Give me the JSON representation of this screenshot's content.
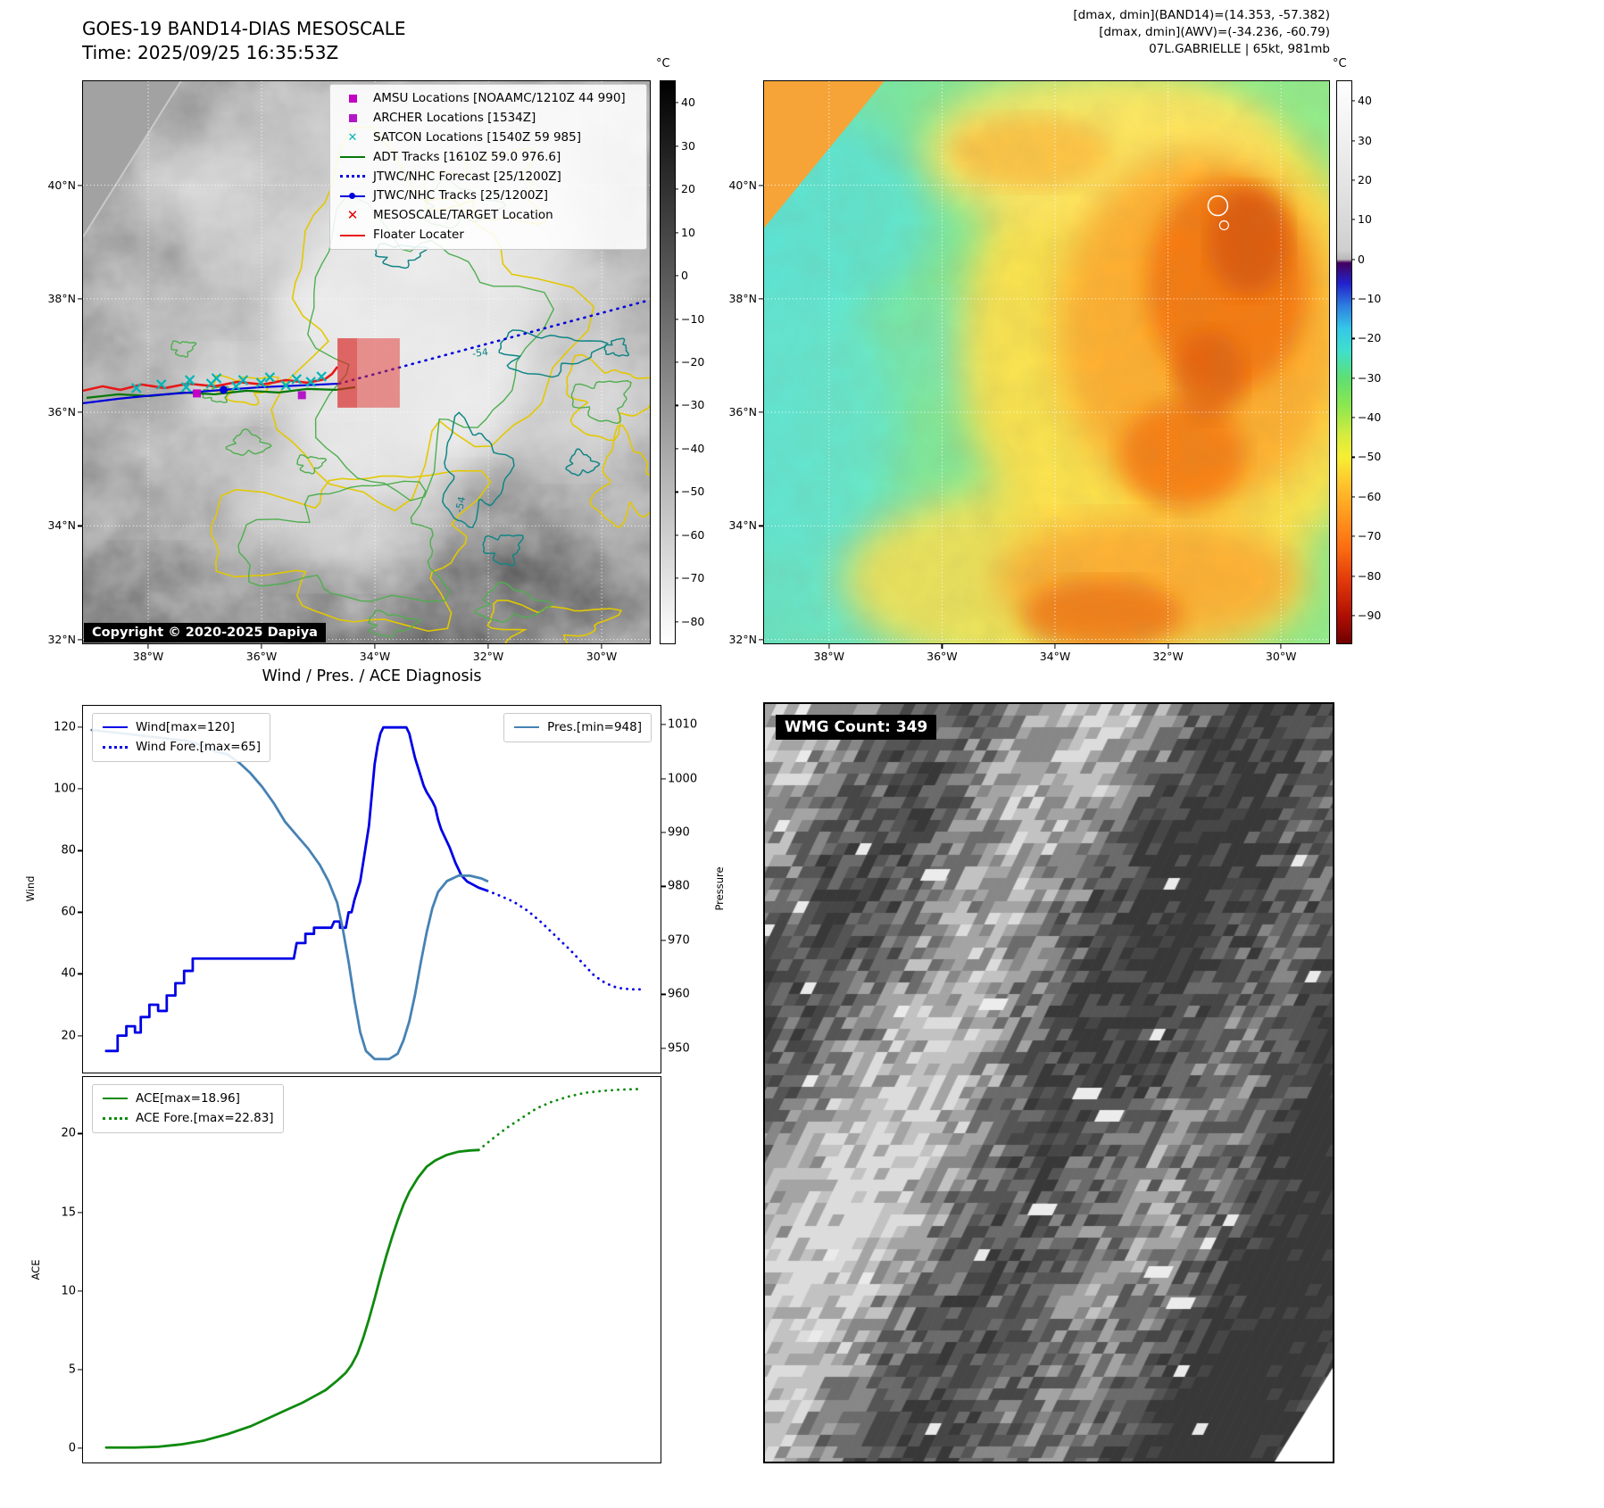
{
  "colors": {
    "wind_line": "#0000e6",
    "pressure_line": "#4682b4",
    "ace_line": "#0e8a0e",
    "amsu_magenta": "#c400c4",
    "archer_magenta": "#b515c8",
    "satcon_cyan": "#00b5b5",
    "adt_green": "#067806",
    "jtwc_blue": "#0000dd",
    "target_red": "#e60000",
    "floater_red": "#e81818",
    "contour_yellow": "#e3c800",
    "contour_green": "#4fae4f",
    "contour_teal": "#128585"
  },
  "band14_panel": {
    "title": "GOES-19 BAND14-DIAS MESOSCALE",
    "time_label": "Time: 2025/09/25 16:35:53Z",
    "copyright": "Copyright © 2020-2025 Dapiya",
    "contour_label": "-54",
    "lat_ticks": [
      "40°N",
      "38°N",
      "36°N",
      "34°N",
      "32°N"
    ],
    "lon_ticks": [
      "38°W",
      "36°W",
      "34°W",
      "32°W",
      "30°W"
    ],
    "colorbar": {
      "unit": "°C",
      "vmax": 45,
      "vmin": -85,
      "ticks": [
        40,
        30,
        20,
        10,
        0,
        -10,
        -20,
        -30,
        -40,
        -50,
        -60,
        -70,
        -80
      ],
      "gradient": [
        [
          0,
          "#000000"
        ],
        [
          50,
          "#808080"
        ],
        [
          100,
          "#ffffff"
        ]
      ]
    },
    "legend": [
      {
        "label": "AMSU Locations [NOAAMC/1210Z 44 990]",
        "marker": "square",
        "color": "#c400c4"
      },
      {
        "label": "ARCHER Locations [1534Z]",
        "marker": "square",
        "color": "#b515c8"
      },
      {
        "label": "SATCON Locations [1540Z 59 985]",
        "marker": "x",
        "color": "#00b5b5"
      },
      {
        "label": "ADT Tracks [1610Z 59.0 976.6]",
        "marker": "line",
        "color": "#067806"
      },
      {
        "label": "JTWC/NHC Forecast [25/1200Z]",
        "marker": "dotted",
        "color": "#0000dd"
      },
      {
        "label": "JTWC/NHC Tracks [25/1200Z]",
        "marker": "line-dot",
        "color": "#0000dd"
      },
      {
        "label": "MESOSCALE/TARGET Location",
        "marker": "x-bold",
        "color": "#e60000"
      },
      {
        "label": "Floater Locater",
        "marker": "line",
        "color": "#e81818"
      }
    ]
  },
  "awv_panel": {
    "header_line1": "[dmax, dmin](BAND14)=(14.353, -57.382)",
    "header_line2": "[dmax, dmin](AWV)=(-34.236, -60.79)",
    "header_line3": "07L.GABRIELLE | 65kt, 981mb",
    "lat_ticks": [
      "40°N",
      "38°N",
      "36°N",
      "34°N",
      "32°N"
    ],
    "lon_ticks": [
      "38°W",
      "36°W",
      "34°W",
      "32°W",
      "30°W"
    ],
    "colorbar": {
      "unit": "°C",
      "vmax": 45,
      "vmin": -97,
      "ticks": [
        40,
        30,
        20,
        10,
        0,
        -10,
        -20,
        -30,
        -40,
        -50,
        -60,
        -70,
        -80,
        -90
      ],
      "gradient": [
        [
          0,
          "#ffffff"
        ],
        [
          22,
          "#dedede"
        ],
        [
          30,
          "#cfcfcf"
        ],
        [
          31.7,
          "#b8b8b8"
        ],
        [
          32.3,
          "#44005e"
        ],
        [
          36,
          "#2222cc"
        ],
        [
          40,
          "#2e7fe0"
        ],
        [
          44,
          "#35c8e8"
        ],
        [
          48,
          "#3fe0cc"
        ],
        [
          53,
          "#5fdf70"
        ],
        [
          58,
          "#8fe84e"
        ],
        [
          63,
          "#d6ec3e"
        ],
        [
          67,
          "#f7ee33"
        ],
        [
          72,
          "#ffc12c"
        ],
        [
          77,
          "#ff9a1f"
        ],
        [
          83,
          "#fb6d12"
        ],
        [
          89,
          "#e0380a"
        ],
        [
          95,
          "#b01004"
        ],
        [
          100,
          "#700000"
        ]
      ]
    }
  },
  "diagnosis": {
    "title": "Wind / Pres. / ACE Diagnosis",
    "wind_axis_label": "Wind",
    "pressure_axis_label": "Pressure",
    "ace_axis_label": "ACE"
  },
  "wmg_panel": {
    "label": "WMG Count: 349"
  },
  "chart_data": [
    {
      "type": "line",
      "title": "Wind / Pres. diagnosis (top panel)",
      "ylabel": "Wind",
      "ylabel_right": "Pressure",
      "ylim": [
        8,
        127
      ],
      "ylim_right": [
        945.5,
        1013.5
      ],
      "yticks": [
        20,
        40,
        60,
        80,
        100,
        120
      ],
      "yticks_right": [
        950,
        960,
        970,
        980,
        990,
        1000,
        1010
      ],
      "xlim": [
        0,
        100
      ],
      "grid": false,
      "legend_position": "upper-left and upper-right",
      "series": [
        {
          "name": "Wind[max=120]",
          "color": "#0000e6",
          "style": "solid",
          "axis": "left",
          "points": [
            [
              4,
              15
            ],
            [
              6,
              15
            ],
            [
              6,
              20
            ],
            [
              7.5,
              20
            ],
            [
              7.5,
              23
            ],
            [
              9,
              23
            ],
            [
              9,
              21
            ],
            [
              10,
              21
            ],
            [
              10,
              26
            ],
            [
              11.5,
              26
            ],
            [
              11.5,
              30
            ],
            [
              13,
              30
            ],
            [
              13,
              28
            ],
            [
              14.5,
              28
            ],
            [
              14.5,
              33
            ],
            [
              16,
              33
            ],
            [
              16,
              37
            ],
            [
              17.5,
              37
            ],
            [
              17.5,
              41
            ],
            [
              19,
              41
            ],
            [
              19,
              45
            ],
            [
              21,
              45
            ],
            [
              36.5,
              45
            ],
            [
              37,
              50
            ],
            [
              38.5,
              50
            ],
            [
              38.5,
              53
            ],
            [
              40,
              53
            ],
            [
              40,
              55
            ],
            [
              43,
              55
            ],
            [
              43.5,
              57
            ],
            [
              44.5,
              57
            ],
            [
              44.5,
              55
            ],
            [
              45.5,
              55
            ],
            [
              46,
              60
            ],
            [
              46.5,
              60
            ],
            [
              47,
              64
            ],
            [
              48,
              70
            ],
            [
              48.5,
              76
            ],
            [
              49.5,
              88
            ],
            [
              50,
              98
            ],
            [
              50.5,
              108
            ],
            [
              51,
              114
            ],
            [
              51.5,
              118
            ],
            [
              52,
              120
            ],
            [
              56,
              120
            ],
            [
              56.5,
              118
            ],
            [
              57,
              114
            ],
            [
              57.5,
              110
            ],
            [
              58.5,
              104
            ],
            [
              59,
              101
            ],
            [
              59.5,
              99
            ],
            [
              60.5,
              96
            ],
            [
              61,
              94
            ],
            [
              61.5,
              90
            ],
            [
              62,
              87
            ],
            [
              62.5,
              85
            ],
            [
              63.5,
              81
            ],
            [
              64.5,
              76
            ],
            [
              65,
              74
            ],
            [
              65.5,
              72
            ],
            [
              66.5,
              70
            ],
            [
              67.5,
              69
            ],
            [
              68.5,
              68
            ],
            [
              70,
              67
            ]
          ]
        },
        {
          "name": "Wind Fore.[max=65]",
          "color": "#0000e6",
          "style": "dotted",
          "axis": "left",
          "points": [
            [
              70,
              67
            ],
            [
              72,
              65.5
            ],
            [
              74.5,
              63.5
            ],
            [
              77,
              60.5
            ],
            [
              79.5,
              56.5
            ],
            [
              82,
              52
            ],
            [
              84.5,
              47.5
            ],
            [
              86.5,
              43.5
            ],
            [
              88.5,
              39.5
            ],
            [
              90.5,
              37
            ],
            [
              92.5,
              35.5
            ],
            [
              95,
              35
            ],
            [
              97,
              35
            ]
          ]
        },
        {
          "name": "Pres.[min=948]",
          "color": "#4682b4",
          "style": "solid",
          "axis": "right",
          "points": [
            [
              1.5,
              1009
            ],
            [
              6,
              1008.5
            ],
            [
              10,
              1008
            ],
            [
              14,
              1007.5
            ],
            [
              18,
              1007
            ],
            [
              21,
              1006
            ],
            [
              23,
              1005
            ],
            [
              25,
              1004.5
            ],
            [
              27,
              1003
            ],
            [
              29,
              1001
            ],
            [
              31,
              998.5
            ],
            [
              33,
              995.5
            ],
            [
              35,
              992
            ],
            [
              37,
              989.5
            ],
            [
              39,
              987
            ],
            [
              41,
              984
            ],
            [
              42.5,
              981
            ],
            [
              44,
              977
            ],
            [
              45,
              972
            ],
            [
              46,
              966
            ],
            [
              47,
              959
            ],
            [
              48,
              953
            ],
            [
              49,
              949.5
            ],
            [
              50.5,
              948
            ],
            [
              53,
              948
            ],
            [
              54.5,
              949
            ],
            [
              55.5,
              951.5
            ],
            [
              56.5,
              955
            ],
            [
              57.5,
              960
            ],
            [
              58.5,
              966
            ],
            [
              59.5,
              971.5
            ],
            [
              60.5,
              976
            ],
            [
              61.5,
              979
            ],
            [
              63,
              981
            ],
            [
              65,
              982
            ],
            [
              67,
              982
            ],
            [
              69,
              981.5
            ],
            [
              70,
              981
            ]
          ]
        }
      ]
    },
    {
      "type": "line",
      "title": "ACE diagnosis (bottom panel)",
      "ylabel": "ACE",
      "ylim": [
        -0.9,
        23.6
      ],
      "yticks": [
        0,
        5,
        10,
        15,
        20
      ],
      "xlim": [
        0,
        100
      ],
      "grid": false,
      "legend_position": "upper-left",
      "series": [
        {
          "name": "ACE[max=18.96]",
          "color": "#0e8a0e",
          "style": "solid",
          "axis": "left",
          "points": [
            [
              4,
              0.05
            ],
            [
              9,
              0.05
            ],
            [
              13,
              0.1
            ],
            [
              17,
              0.25
            ],
            [
              21,
              0.5
            ],
            [
              25,
              0.9
            ],
            [
              29,
              1.4
            ],
            [
              32,
              1.9
            ],
            [
              35,
              2.4
            ],
            [
              38,
              2.9
            ],
            [
              40,
              3.3
            ],
            [
              42,
              3.7
            ],
            [
              44,
              4.3
            ],
            [
              45.5,
              4.8
            ],
            [
              46.5,
              5.3
            ],
            [
              47.5,
              6
            ],
            [
              48.5,
              7
            ],
            [
              49.5,
              8.2
            ],
            [
              50.5,
              9.5
            ],
            [
              51.5,
              10.9
            ],
            [
              52.5,
              12.2
            ],
            [
              53.5,
              13.4
            ],
            [
              54.5,
              14.5
            ],
            [
              55.5,
              15.5
            ],
            [
              56.5,
              16.3
            ],
            [
              58,
              17.2
            ],
            [
              59.5,
              17.9
            ],
            [
              61,
              18.3
            ],
            [
              63,
              18.65
            ],
            [
              65,
              18.85
            ],
            [
              67,
              18.93
            ],
            [
              68.5,
              18.96
            ]
          ]
        },
        {
          "name": "ACE Fore.[max=22.83]",
          "color": "#0e8a0e",
          "style": "dotted",
          "axis": "left",
          "points": [
            [
              68.5,
              18.96
            ],
            [
              71,
              19.7
            ],
            [
              73.5,
              20.4
            ],
            [
              76,
              21
            ],
            [
              78.5,
              21.6
            ],
            [
              81,
              22
            ],
            [
              84,
              22.35
            ],
            [
              87,
              22.6
            ],
            [
              90,
              22.72
            ],
            [
              93,
              22.8
            ],
            [
              96,
              22.83
            ]
          ]
        }
      ]
    }
  ]
}
